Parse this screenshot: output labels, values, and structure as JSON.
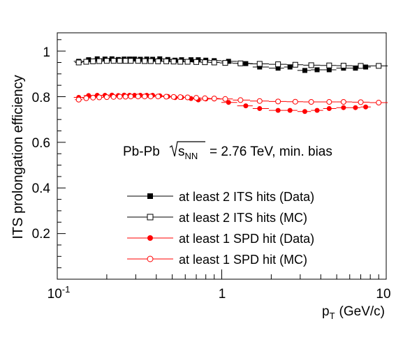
{
  "chart_data": {
    "type": "scatter",
    "xlabel_main": "p",
    "xlabel_sub": "T",
    "xlabel_unit": "(GeV/c)",
    "ylabel": "ITS prolongation efficiency",
    "xscale": "log",
    "xlim": [
      0.1,
      10
    ],
    "ylim": [
      0.0,
      1.08
    ],
    "x_tick_labels": [
      "10",
      "1",
      "10"
    ],
    "x_tick_label_sup": "-1",
    "y_tick_labels": [
      "0.2",
      "0.4",
      "0.6",
      "0.8",
      "1"
    ],
    "y_ticks": [
      0.2,
      0.4,
      0.6,
      0.8,
      1.0
    ],
    "annotation": {
      "pre": "Pb-Pb",
      "sqrt_s": "s",
      "sqrt_sub": "NN",
      "post": "= 2.76 TeV, min. bias"
    },
    "legend_position": "bottom-center",
    "series": [
      {
        "name": "at least 2 ITS hits (Data)",
        "color": "#000000",
        "marker": "filled-square",
        "x": [
          0.135,
          0.155,
          0.175,
          0.195,
          0.215,
          0.235,
          0.255,
          0.275,
          0.295,
          0.32,
          0.35,
          0.38,
          0.42,
          0.47,
          0.52,
          0.57,
          0.65,
          0.72,
          0.8,
          0.9,
          1.1,
          1.4,
          1.7,
          2.2,
          2.6,
          3.2,
          3.8,
          4.5,
          5.5,
          6.5,
          7.5
        ],
        "y": [
          0.955,
          0.962,
          0.966,
          0.965,
          0.966,
          0.963,
          0.965,
          0.965,
          0.965,
          0.964,
          0.965,
          0.964,
          0.966,
          0.963,
          0.96,
          0.962,
          0.962,
          0.962,
          0.96,
          0.958,
          0.955,
          0.945,
          0.93,
          0.925,
          0.93,
          0.915,
          0.918,
          0.918,
          0.925,
          0.925,
          0.93
        ]
      },
      {
        "name": "at least 2 ITS hits (MC)",
        "color": "#000000",
        "marker": "open-square",
        "x": [
          0.135,
          0.15,
          0.165,
          0.18,
          0.2,
          0.22,
          0.24,
          0.26,
          0.28,
          0.31,
          0.34,
          0.37,
          0.41,
          0.46,
          0.51,
          0.56,
          0.62,
          0.7,
          0.79,
          0.9,
          1.05,
          1.3,
          1.7,
          2.2,
          2.8,
          3.5,
          4.5,
          5.5,
          7.0,
          9.0
        ],
        "y": [
          0.95,
          0.953,
          0.955,
          0.956,
          0.957,
          0.957,
          0.957,
          0.957,
          0.957,
          0.957,
          0.956,
          0.956,
          0.955,
          0.955,
          0.954,
          0.953,
          0.953,
          0.952,
          0.951,
          0.95,
          0.948,
          0.946,
          0.944,
          0.942,
          0.94,
          0.938,
          0.937,
          0.936,
          0.935,
          0.935
        ]
      },
      {
        "name": "at least 1 SPD hit (Data)",
        "color": "#ff0000",
        "marker": "filled-circle",
        "x": [
          0.135,
          0.155,
          0.175,
          0.195,
          0.215,
          0.235,
          0.255,
          0.275,
          0.295,
          0.32,
          0.35,
          0.38,
          0.42,
          0.47,
          0.52,
          0.57,
          0.65,
          0.72,
          0.8,
          0.9,
          1.1,
          1.4,
          1.7,
          2.2,
          2.6,
          3.2,
          3.8,
          4.5,
          5.5,
          6.5,
          7.5
        ],
        "y": [
          0.797,
          0.805,
          0.806,
          0.806,
          0.807,
          0.805,
          0.807,
          0.806,
          0.806,
          0.806,
          0.806,
          0.806,
          0.804,
          0.801,
          0.796,
          0.797,
          0.792,
          0.786,
          0.79,
          0.79,
          0.775,
          0.76,
          0.748,
          0.74,
          0.74,
          0.735,
          0.74,
          0.748,
          0.752,
          0.752,
          0.755
        ]
      },
      {
        "name": "at least 1 SPD hit (MC)",
        "color": "#ff0000",
        "marker": "open-circle",
        "x": [
          0.135,
          0.15,
          0.165,
          0.18,
          0.2,
          0.22,
          0.24,
          0.26,
          0.28,
          0.31,
          0.34,
          0.37,
          0.41,
          0.46,
          0.51,
          0.56,
          0.62,
          0.7,
          0.79,
          0.9,
          1.05,
          1.3,
          1.7,
          2.2,
          2.8,
          3.5,
          4.5,
          5.5,
          7.0,
          9.0
        ],
        "y": [
          0.787,
          0.793,
          0.796,
          0.797,
          0.798,
          0.799,
          0.8,
          0.8,
          0.801,
          0.801,
          0.801,
          0.801,
          0.801,
          0.8,
          0.799,
          0.798,
          0.797,
          0.795,
          0.793,
          0.792,
          0.79,
          0.785,
          0.781,
          0.779,
          0.778,
          0.777,
          0.777,
          0.777,
          0.776,
          0.774
        ]
      }
    ]
  }
}
